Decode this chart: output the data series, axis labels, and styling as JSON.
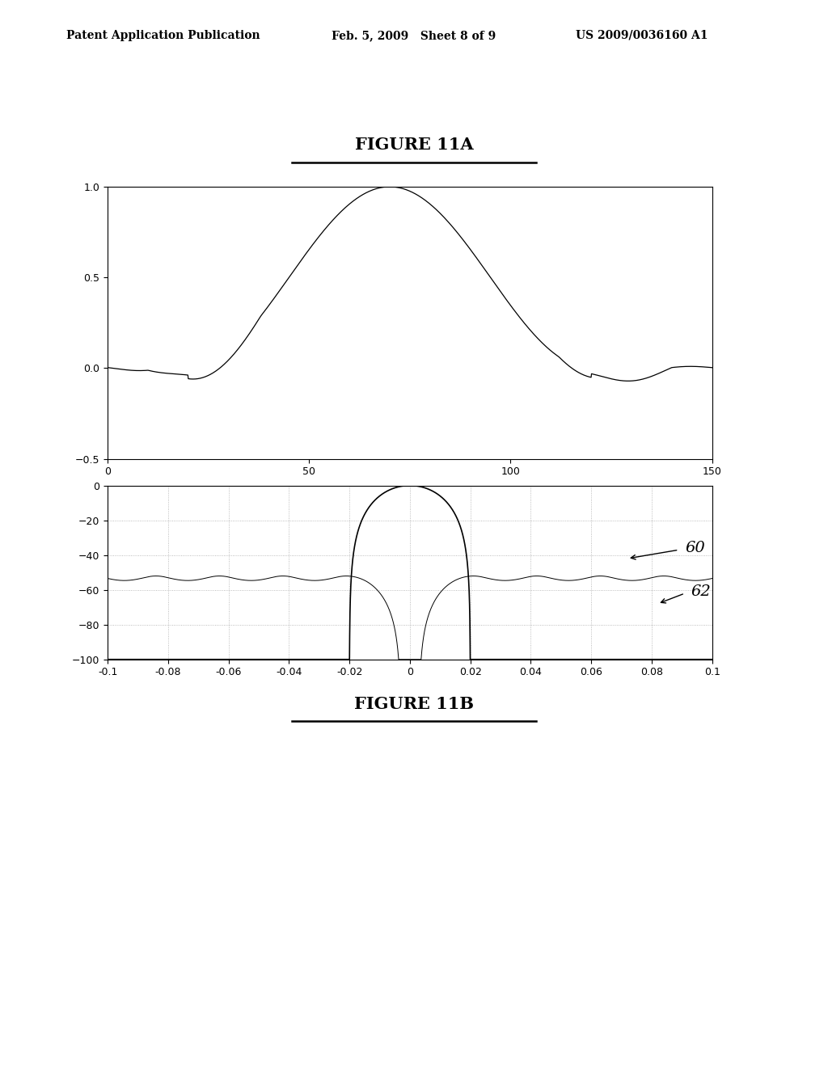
{
  "fig_width": 10.24,
  "fig_height": 13.2,
  "bg_color": "#ffffff",
  "header_left": "Patent Application Publication",
  "header_mid": "Feb. 5, 2009   Sheet 8 of 9",
  "header_right": "US 2009/0036160 A1",
  "title_11a": "FIGURE 11A",
  "title_11b": "FIGURE 11B",
  "plot1_xlim": [
    0,
    150
  ],
  "plot1_ylim": [
    -0.5,
    1.0
  ],
  "plot1_yticks": [
    -0.5,
    0,
    0.5,
    1
  ],
  "plot1_xticks": [
    0,
    50,
    100,
    150
  ],
  "plot2_xlim": [
    -0.1,
    0.1
  ],
  "plot2_ylim": [
    -100,
    0
  ],
  "plot2_yticks": [
    -100,
    -80,
    -60,
    -40,
    -20,
    0
  ],
  "plot2_xticks": [
    -0.1,
    -0.08,
    -0.06,
    -0.04,
    -0.02,
    0,
    0.02,
    0.04,
    0.06,
    0.08,
    0.1
  ],
  "plot2_xtick_labels": [
    "-0.1",
    "-0.08",
    "-0.06",
    "-0.04",
    "-0.02",
    "0",
    "0.02",
    "0.04",
    "0.06",
    "0.08",
    "0.1"
  ],
  "label_60": "60",
  "label_62": "62",
  "grid_color": "#aaaaaa",
  "grid_style": ":",
  "title_fontsize": 15,
  "header_fontsize": 10,
  "tick_fontsize": 9,
  "annot_fontsize": 14
}
